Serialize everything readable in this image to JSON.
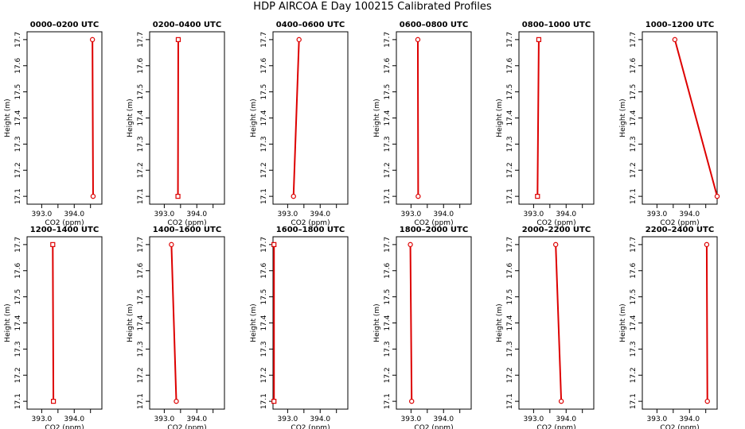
{
  "title": "HDP AIRCOA E  Day 100215  Calibrated Profiles",
  "colors": {
    "series": "#dd0000",
    "axes": "#000000",
    "background": "#ffffff"
  },
  "chart_data": {
    "type": "line",
    "xlabel": "CO2 (ppm)",
    "ylabel": "Height (m)",
    "xlim": [
      392.55,
      394.85
    ],
    "ylim": [
      17.07,
      17.73
    ],
    "x_ticks": [
      393.0,
      393.5,
      394.0,
      394.5
    ],
    "x_tick_labels": [
      "393.0",
      "",
      "394.0",
      ""
    ],
    "y_ticks": [
      17.1,
      17.2,
      17.3,
      17.4,
      17.5,
      17.6,
      17.7
    ],
    "y_tick_labels": [
      "17.1",
      "17.2",
      "17.3",
      "17.4",
      "17.5",
      "17.6",
      "17.7"
    ],
    "panels": [
      {
        "title": "0000–0200 UTC",
        "marker": "circle",
        "points": [
          {
            "x": 394.58,
            "y": 17.1
          },
          {
            "x": 394.56,
            "y": 17.7
          }
        ]
      },
      {
        "title": "0200–0400 UTC",
        "marker": "square",
        "points": [
          {
            "x": 393.42,
            "y": 17.1
          },
          {
            "x": 393.43,
            "y": 17.7
          }
        ]
      },
      {
        "title": "0400–0600 UTC",
        "marker": "circle",
        "points": [
          {
            "x": 393.18,
            "y": 17.1
          },
          {
            "x": 393.35,
            "y": 17.7
          }
        ]
      },
      {
        "title": "0600–0800 UTC",
        "marker": "circle",
        "points": [
          {
            "x": 393.22,
            "y": 17.1
          },
          {
            "x": 393.21,
            "y": 17.7
          }
        ]
      },
      {
        "title": "0800–1000 UTC",
        "marker": "square",
        "points": [
          {
            "x": 393.12,
            "y": 17.1
          },
          {
            "x": 393.16,
            "y": 17.7
          }
        ]
      },
      {
        "title": "1000–1200 UTC",
        "marker": "circle",
        "points": [
          {
            "x": 394.85,
            "y": 17.1
          },
          {
            "x": 393.55,
            "y": 17.7
          }
        ]
      },
      {
        "title": "1200–1400 UTC",
        "marker": "square",
        "points": [
          {
            "x": 393.36,
            "y": 17.1
          },
          {
            "x": 393.34,
            "y": 17.7
          }
        ]
      },
      {
        "title": "1400–1600 UTC",
        "marker": "circle",
        "points": [
          {
            "x": 393.37,
            "y": 17.1
          },
          {
            "x": 393.22,
            "y": 17.7
          }
        ]
      },
      {
        "title": "1600–1800 UTC",
        "marker": "square",
        "points": [
          {
            "x": 392.58,
            "y": 17.1
          },
          {
            "x": 392.58,
            "y": 17.7
          }
        ]
      },
      {
        "title": "1800–2000 UTC",
        "marker": "circle",
        "points": [
          {
            "x": 393.02,
            "y": 17.1
          },
          {
            "x": 392.98,
            "y": 17.7
          }
        ]
      },
      {
        "title": "2000–2200 UTC",
        "marker": "circle",
        "points": [
          {
            "x": 393.85,
            "y": 17.1
          },
          {
            "x": 393.68,
            "y": 17.7
          }
        ]
      },
      {
        "title": "2200–2400 UTC",
        "marker": "circle",
        "points": [
          {
            "x": 394.55,
            "y": 17.1
          },
          {
            "x": 394.53,
            "y": 17.7
          }
        ]
      }
    ]
  }
}
